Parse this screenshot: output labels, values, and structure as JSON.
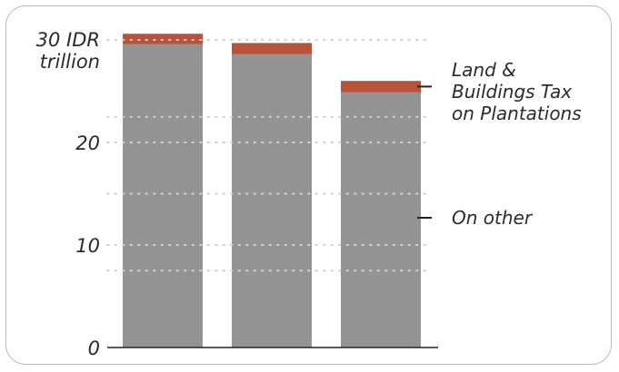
{
  "chart_data": {
    "type": "bar",
    "stacked": true,
    "categories": [
      "",
      "",
      ""
    ],
    "series": [
      {
        "name": "On other",
        "values": [
          29.6,
          28.6,
          24.9
        ],
        "color": "#939393"
      },
      {
        "name": "Land & Buildings Tax on Plantations",
        "values": [
          1.0,
          1.1,
          1.1
        ],
        "color": "#b85238"
      }
    ],
    "yunit": "IDR trillion",
    "ylim": [
      0,
      30
    ],
    "yticks": [
      0,
      10,
      20,
      30
    ],
    "ytick_labels": [
      "0",
      "10",
      "20",
      "30 IDR"
    ],
    "ytick_unit_line": "trillion",
    "grid": "dotted",
    "legend": {
      "placement": "right",
      "top_label_lines": [
        "Land &",
        "Buildings Tax",
        "on Plantations"
      ],
      "bottom_label": "On other"
    }
  }
}
